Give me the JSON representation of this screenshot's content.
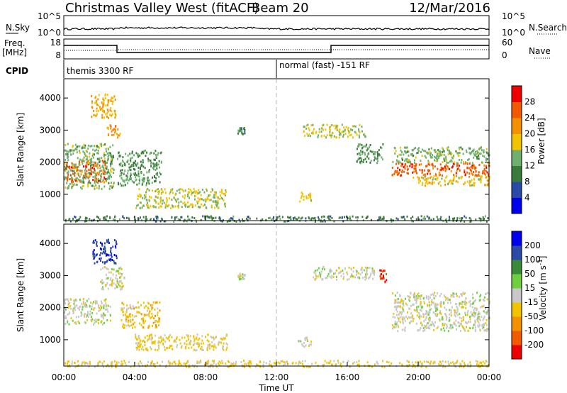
{
  "header": {
    "site": "Christmas Valley West (fitACF)",
    "beam": "Beam 20",
    "date": "12/Mar/2016"
  },
  "noise_panel": {
    "left_label": "N.Sky",
    "right_label": "N.Search",
    "left_ticks": [
      "10^5",
      "10^0"
    ],
    "right_ticks": [
      "10^5",
      "10^0"
    ]
  },
  "freq_panel": {
    "left_label_1": "Freq.",
    "left_label_2": "[MHz]",
    "right_label": "Nave",
    "left_ticks": [
      "18",
      "8"
    ],
    "right_ticks": [
      "60",
      "0"
    ]
  },
  "cpid": {
    "label": "CPID",
    "segments": [
      {
        "label": "themis 3300 RF",
        "start_hour": 0
      },
      {
        "label": "normal (fast) -151 RF",
        "start_hour": 12
      }
    ]
  },
  "chart_data": [
    {
      "type": "heatmap",
      "name": "power",
      "ylabel": "Slant Range [km]",
      "yticks": [
        "4000",
        "3000",
        "2000",
        "1000"
      ],
      "yrange_km": [
        180,
        4600
      ],
      "colorbar_label": "Power [dB]",
      "colorbar_ticks": [
        "28",
        "24",
        "20",
        "16",
        "12",
        "8",
        "4"
      ],
      "colorbar_range": [
        0,
        32
      ],
      "colorbar_colors": [
        "#0000ee",
        "#2b4aa8",
        "#3a7a3a",
        "#6fb06f",
        "#f2c400",
        "#f39100",
        "#f25a00",
        "#ee0000"
      ],
      "echo_regions": [
        {
          "t0": 0.0,
          "t1": 2.4,
          "r0": 1400,
          "r1": 2100,
          "level": 26
        },
        {
          "t0": 0.0,
          "t1": 2.8,
          "r0": 1200,
          "r1": 2600,
          "level": 14
        },
        {
          "t0": 1.5,
          "t1": 2.9,
          "r0": 3400,
          "r1": 4150,
          "level": 20
        },
        {
          "t0": 2.4,
          "t1": 3.2,
          "r0": 2800,
          "r1": 3200,
          "level": 22
        },
        {
          "t0": 3.0,
          "t1": 5.5,
          "r0": 1300,
          "r1": 2400,
          "level": 12
        },
        {
          "t0": 4.0,
          "t1": 9.2,
          "r0": 600,
          "r1": 1200,
          "level": 16
        },
        {
          "t0": 9.8,
          "t1": 10.2,
          "r0": 2900,
          "r1": 3100,
          "level": 10
        },
        {
          "t0": 13.2,
          "t1": 14.0,
          "r0": 800,
          "r1": 1100,
          "level": 18
        },
        {
          "t0": 13.5,
          "t1": 17.0,
          "r0": 2800,
          "r1": 3200,
          "level": 16
        },
        {
          "t0": 16.5,
          "t1": 18.0,
          "r0": 2000,
          "r1": 2600,
          "level": 12
        },
        {
          "t0": 18.5,
          "t1": 24.0,
          "r0": 1600,
          "r1": 2000,
          "level": 26
        },
        {
          "t0": 18.5,
          "t1": 24.0,
          "r0": 2000,
          "r1": 2500,
          "level": 14
        },
        {
          "t0": 19.5,
          "t1": 24.0,
          "r0": 1300,
          "r1": 1600,
          "level": 18
        },
        {
          "t0": 0.0,
          "t1": 24.0,
          "r0": 180,
          "r1": 350,
          "level": 10
        }
      ]
    },
    {
      "type": "heatmap",
      "name": "velocity",
      "ylabel": "Slant Range [km]",
      "yticks": [
        "4000",
        "3000",
        "2000",
        "1000"
      ],
      "yrange_km": [
        180,
        4600
      ],
      "colorbar_label": "Velocity [m s^-1]",
      "colorbar_ticks": [
        "200",
        "100",
        "50",
        "15",
        "-15",
        "-50",
        "-100",
        "-200"
      ],
      "colorbar_range": [
        -250,
        250
      ],
      "colorbar_colors": [
        "#ee0000",
        "#f25a00",
        "#f39100",
        "#f2c400",
        "#c8c8c8",
        "#6fcf3f",
        "#3a8a3a",
        "#2b4aa8",
        "#0000ee"
      ],
      "echo_regions": [
        {
          "t0": 0.0,
          "t1": 2.6,
          "r0": 1500,
          "r1": 2300,
          "level": 0
        },
        {
          "t0": 1.6,
          "t1": 3.0,
          "r0": 3400,
          "r1": 4150,
          "level": 180
        },
        {
          "t0": 2.0,
          "t1": 3.4,
          "r0": 2600,
          "r1": 3300,
          "level": 0
        },
        {
          "t0": 3.2,
          "t1": 5.4,
          "r0": 1400,
          "r1": 2200,
          "level": -60
        },
        {
          "t0": 4.0,
          "t1": 9.2,
          "r0": 700,
          "r1": 1200,
          "level": -40
        },
        {
          "t0": 9.8,
          "t1": 10.2,
          "r0": 2900,
          "r1": 3100,
          "level": 0
        },
        {
          "t0": 13.2,
          "t1": 14.0,
          "r0": 800,
          "r1": 1100,
          "level": 0
        },
        {
          "t0": 14.0,
          "t1": 17.5,
          "r0": 2900,
          "r1": 3300,
          "level": 0
        },
        {
          "t0": 17.8,
          "t1": 18.2,
          "r0": 2800,
          "r1": 3200,
          "level": -200
        },
        {
          "t0": 18.5,
          "t1": 24.0,
          "r0": 1300,
          "r1": 2500,
          "level": 0
        },
        {
          "t0": 0.0,
          "t1": 24.0,
          "r0": 180,
          "r1": 380,
          "level": -40
        }
      ]
    }
  ],
  "time_axis": {
    "ticks": [
      "00:00",
      "04:00",
      "08:00",
      "12:00",
      "16:00",
      "20:00",
      "00:00"
    ],
    "label": "Time UT"
  }
}
